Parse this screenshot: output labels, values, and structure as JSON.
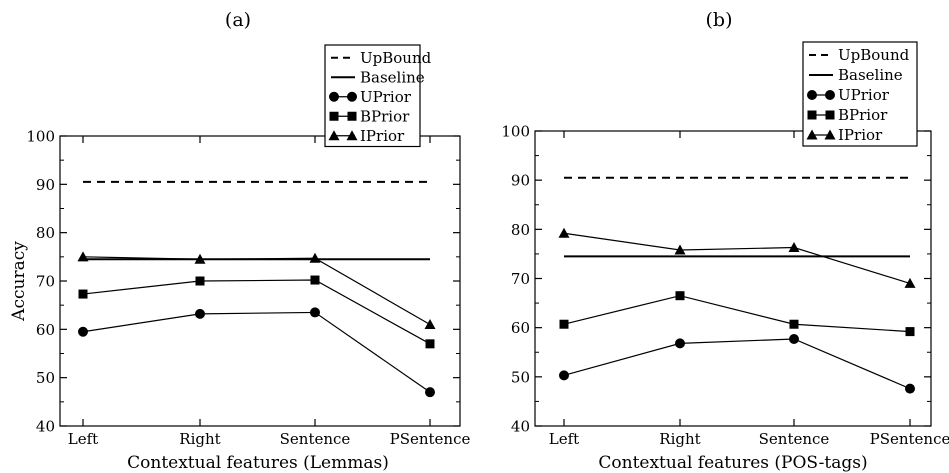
{
  "figure": {
    "colors": {
      "ink": "#000000",
      "background": "#ffffff"
    }
  },
  "chart_data": [
    {
      "type": "line",
      "title": "(a)",
      "xlabel": "Contextual features (Lemmas)",
      "ylabel": "Accuracy",
      "categories": [
        "Left",
        "Right",
        "Sentence",
        "PSentence"
      ],
      "yticks": [
        40,
        50,
        60,
        70,
        80,
        90,
        100
      ],
      "ylim": [
        40,
        100
      ],
      "grid": false,
      "legend": "top-center",
      "series": [
        {
          "name": "UpBound",
          "values": [
            90.5,
            90.5,
            90.5,
            90.5
          ],
          "style": "dashed",
          "marker": "none"
        },
        {
          "name": "Baseline",
          "values": [
            74.5,
            74.5,
            74.5,
            74.5
          ],
          "style": "solid",
          "marker": "none"
        },
        {
          "name": "UPrior",
          "values": [
            59.5,
            63.2,
            63.5,
            47.0
          ],
          "style": "solid",
          "marker": "circle"
        },
        {
          "name": "BPrior",
          "values": [
            67.3,
            70.0,
            70.2,
            57.0
          ],
          "style": "solid",
          "marker": "square"
        },
        {
          "name": "IPrior",
          "values": [
            75.0,
            74.5,
            74.7,
            61.0
          ],
          "style": "solid",
          "marker": "triangle"
        }
      ]
    },
    {
      "type": "line",
      "title": "(b)",
      "xlabel": "Contextual features (POS-tags)",
      "ylabel": "",
      "categories": [
        "Left",
        "Right",
        "Sentence",
        "PSentence"
      ],
      "yticks": [
        40,
        50,
        60,
        70,
        80,
        90,
        100
      ],
      "ylim": [
        40,
        100
      ],
      "grid": false,
      "legend": "top-right",
      "series": [
        {
          "name": "UpBound",
          "values": [
            90.5,
            90.5,
            90.5,
            90.5
          ],
          "style": "dashed",
          "marker": "none"
        },
        {
          "name": "Baseline",
          "values": [
            74.5,
            74.5,
            74.5,
            74.5
          ],
          "style": "solid",
          "marker": "none"
        },
        {
          "name": "UPrior",
          "values": [
            50.3,
            56.8,
            57.7,
            47.6
          ],
          "style": "solid",
          "marker": "circle"
        },
        {
          "name": "BPrior",
          "values": [
            60.7,
            66.5,
            60.7,
            59.2
          ],
          "style": "solid",
          "marker": "square"
        },
        {
          "name": "IPrior",
          "values": [
            79.2,
            75.8,
            76.3,
            69.0
          ],
          "style": "solid",
          "marker": "triangle"
        }
      ]
    }
  ]
}
